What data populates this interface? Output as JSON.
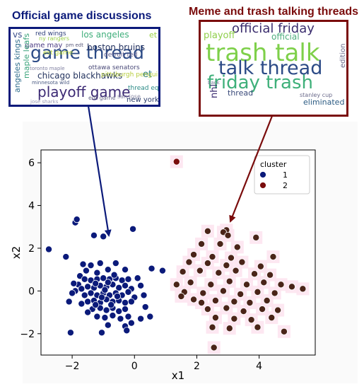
{
  "left_panel": {
    "title": "Official game discussions",
    "color": "#0b1a7a",
    "words": [
      {
        "t": "vs",
        "c": "#3b4f8c"
      },
      {
        "t": "red wings",
        "c": "#2d3f7a"
      },
      {
        "t": "los angeles",
        "c": "#3fae7a"
      },
      {
        "t": "et",
        "c": "#9cd24a"
      },
      {
        "t": "game thread",
        "c": "#2b4a86"
      },
      {
        "t": "game may",
        "c": "#4a3a82"
      },
      {
        "t": "boston bruins",
        "c": "#1f2d5c"
      },
      {
        "t": "est game",
        "c": "#b7d43a"
      },
      {
        "t": "detroit red",
        "c": "#5a5a8a"
      },
      {
        "t": "angeles kings",
        "c": "#2f6d8c"
      },
      {
        "t": "maple leafs",
        "c": "#3aa37a"
      },
      {
        "t": "et",
        "c": "#2f7f8c"
      },
      {
        "t": "chicago blackhawks",
        "c": "#23335e"
      },
      {
        "t": "toronto maple",
        "c": "#7f7fa0"
      },
      {
        "t": "ottawa senators",
        "c": "#4a4a78"
      },
      {
        "t": "minnesota wild",
        "c": "#4a5a82"
      },
      {
        "t": "pittsburgh penguins",
        "c": "#b5cc3a"
      },
      {
        "t": "playoff game",
        "c": "#3c2a74"
      },
      {
        "t": "thread eqt",
        "c": "#2a8a86"
      },
      {
        "t": "edt game",
        "c": "#6a6a8a"
      },
      {
        "t": "san jose",
        "c": "#8a8aa6"
      },
      {
        "t": "new york",
        "c": "#2a3a6a"
      },
      {
        "t": "jose sharks",
        "c": "#9a9ab4"
      },
      {
        "t": "pm edt",
        "c": "#5a5a7a"
      },
      {
        "t": "ny rangers",
        "c": "#9ad04a"
      }
    ]
  },
  "right_panel": {
    "title": "Meme and trash talking threads",
    "color": "#7a0c0c",
    "words": [
      {
        "t": "official friday",
        "c": "#3b2d6e"
      },
      {
        "t": "playoff",
        "c": "#8fcf4a"
      },
      {
        "t": "official",
        "c": "#4fae7e"
      },
      {
        "t": "trash talk",
        "c": "#7ed04a"
      },
      {
        "t": "talk thread",
        "c": "#2b4a86"
      },
      {
        "t": "friday trash",
        "c": "#3fb07a"
      },
      {
        "t": "nhl",
        "c": "#3a2a70"
      },
      {
        "t": "edition",
        "c": "#6a6a8a"
      },
      {
        "t": "thread",
        "c": "#3a4a7a"
      },
      {
        "t": "stanley cup",
        "c": "#6a6a8a"
      },
      {
        "t": "eliminated",
        "c": "#2a5a82"
      },
      {
        "t": "back",
        "c": "#7a7a9a"
      }
    ]
  },
  "chart_data": {
    "type": "scatter",
    "xlabel": "x1",
    "ylabel": "x2",
    "xlim": [
      -3.0,
      5.8
    ],
    "ylim": [
      -3.0,
      6.6
    ],
    "xticks": [
      -2,
      0,
      2,
      4
    ],
    "yticks": [
      -2,
      0,
      2,
      4,
      6
    ],
    "xtick_labels": [
      "−2",
      "0",
      "2",
      "4"
    ],
    "ytick_labels": [
      "−2",
      "0",
      "2",
      "4",
      "6"
    ],
    "grid": false,
    "legend": {
      "title": "cluster",
      "placement": "top-right"
    },
    "series": [
      {
        "name": "1",
        "color": "#0b1a7a",
        "points": [
          [
            -2.75,
            1.95
          ],
          [
            -2.2,
            1.6
          ],
          [
            -1.9,
            3.2
          ],
          [
            -1.85,
            3.35
          ],
          [
            -1.3,
            2.6
          ],
          [
            -1.0,
            2.55
          ],
          [
            -0.05,
            2.9
          ],
          [
            0.9,
            0.95
          ],
          [
            0.55,
            1.05
          ],
          [
            -1.65,
            1.25
          ],
          [
            -1.75,
            0.7
          ],
          [
            -1.8,
            0.3
          ],
          [
            -1.9,
            0.0
          ],
          [
            -1.55,
            0.95
          ],
          [
            -1.4,
            1.2
          ],
          [
            -1.1,
            1.3
          ],
          [
            -0.6,
            1.3
          ],
          [
            -0.3,
            1.0
          ],
          [
            -0.85,
            1.0
          ],
          [
            -1.2,
            0.85
          ],
          [
            -1.6,
            0.55
          ],
          [
            -1.4,
            0.5
          ],
          [
            -1.2,
            0.55
          ],
          [
            -1.0,
            0.6
          ],
          [
            -0.8,
            0.55
          ],
          [
            -0.6,
            0.6
          ],
          [
            -0.4,
            0.5
          ],
          [
            -0.2,
            0.55
          ],
          [
            -1.7,
            0.1
          ],
          [
            -1.5,
            0.2
          ],
          [
            -1.3,
            0.15
          ],
          [
            -1.1,
            0.25
          ],
          [
            -0.9,
            0.2
          ],
          [
            -0.7,
            0.3
          ],
          [
            -0.5,
            0.15
          ],
          [
            -0.3,
            0.25
          ],
          [
            -0.1,
            0.1
          ],
          [
            -1.6,
            -0.2
          ],
          [
            -1.4,
            -0.1
          ],
          [
            -1.2,
            -0.2
          ],
          [
            -1.0,
            -0.1
          ],
          [
            -0.8,
            -0.2
          ],
          [
            -0.6,
            -0.1
          ],
          [
            -0.4,
            -0.2
          ],
          [
            -0.2,
            -0.05
          ],
          [
            0.0,
            -0.3
          ],
          [
            -1.5,
            -0.5
          ],
          [
            -1.3,
            -0.45
          ],
          [
            -1.1,
            -0.55
          ],
          [
            -0.9,
            -0.4
          ],
          [
            -0.7,
            -0.5
          ],
          [
            -0.5,
            -0.45
          ],
          [
            -0.3,
            -0.55
          ],
          [
            -0.1,
            -0.5
          ],
          [
            -1.35,
            -0.85
          ],
          [
            -1.1,
            -0.8
          ],
          [
            -0.9,
            -0.9
          ],
          [
            -0.7,
            -0.8
          ],
          [
            -0.5,
            -0.95
          ],
          [
            -0.3,
            -0.85
          ],
          [
            -1.2,
            -1.2
          ],
          [
            -0.95,
            -1.25
          ],
          [
            -0.7,
            -1.15
          ],
          [
            -0.45,
            -1.3
          ],
          [
            -0.2,
            -1.2
          ],
          [
            -1.5,
            -1.0
          ],
          [
            -1.7,
            -0.6
          ],
          [
            -2.1,
            -0.5
          ],
          [
            -0.85,
            -1.6
          ],
          [
            -0.3,
            -1.65
          ],
          [
            -0.1,
            -1.5
          ],
          [
            -1.05,
            -1.95
          ],
          [
            -2.05,
            -1.95
          ],
          [
            -0.25,
            -1.85
          ],
          [
            0.2,
            -1.3
          ],
          [
            0.5,
            -1.2
          ],
          [
            0.35,
            -0.75
          ],
          [
            0.3,
            -0.2
          ],
          [
            0.2,
            0.25
          ],
          [
            0.1,
            0.6
          ],
          [
            -1.95,
            0.35
          ],
          [
            -2.0,
            -0.1
          ],
          [
            -1.25,
            0.35
          ],
          [
            -0.95,
            0.05
          ],
          [
            -0.75,
            -0.65
          ],
          [
            -0.55,
            -0.25
          ],
          [
            -1.05,
            -0.3
          ],
          [
            -1.25,
            -0.65
          ],
          [
            -0.85,
            0.4
          ],
          [
            -0.65,
            0.75
          ]
        ]
      },
      {
        "name": "2",
        "color": "#7a0c0c",
        "points": [
          [
            1.35,
            6.05
          ],
          [
            2.95,
            2.85
          ],
          [
            2.35,
            2.8
          ],
          [
            2.85,
            2.75
          ],
          [
            3.0,
            2.6
          ],
          [
            2.15,
            2.2
          ],
          [
            2.75,
            2.2
          ],
          [
            3.3,
            2.05
          ],
          [
            3.9,
            2.5
          ],
          [
            1.9,
            1.7
          ],
          [
            2.5,
            1.6
          ],
          [
            3.1,
            1.55
          ],
          [
            1.75,
            1.35
          ],
          [
            2.35,
            1.3
          ],
          [
            2.95,
            1.2
          ],
          [
            3.45,
            1.35
          ],
          [
            4.05,
            1.15
          ],
          [
            4.45,
            1.6
          ],
          [
            1.55,
            0.9
          ],
          [
            2.1,
            0.95
          ],
          [
            2.7,
            0.85
          ],
          [
            3.25,
            0.95
          ],
          [
            3.85,
            0.8
          ],
          [
            4.35,
            0.75
          ],
          [
            1.35,
            0.3
          ],
          [
            1.8,
            0.4
          ],
          [
            2.45,
            0.3
          ],
          [
            3.05,
            0.45
          ],
          [
            3.6,
            0.3
          ],
          [
            4.15,
            0.4
          ],
          [
            4.7,
            0.3
          ],
          [
            5.05,
            0.2
          ],
          [
            5.4,
            0.1
          ],
          [
            1.6,
            -0.05
          ],
          [
            2.2,
            -0.1
          ],
          [
            2.85,
            0.0
          ],
          [
            3.4,
            -0.15
          ],
          [
            3.95,
            -0.05
          ],
          [
            4.5,
            -0.1
          ],
          [
            1.9,
            -0.4
          ],
          [
            2.6,
            -0.45
          ],
          [
            3.2,
            -0.5
          ],
          [
            3.7,
            -0.55
          ],
          [
            4.25,
            -0.45
          ],
          [
            2.35,
            -0.85
          ],
          [
            2.95,
            -0.8
          ],
          [
            3.5,
            -0.95
          ],
          [
            4.1,
            -0.85
          ],
          [
            4.6,
            -0.9
          ],
          [
            2.6,
            -1.25
          ],
          [
            3.2,
            -1.3
          ],
          [
            3.75,
            -1.35
          ],
          [
            4.4,
            -1.25
          ],
          [
            2.5,
            -1.7
          ],
          [
            3.05,
            -1.75
          ],
          [
            3.95,
            -1.7
          ],
          [
            4.8,
            -1.9
          ],
          [
            2.55,
            -2.65
          ],
          [
            2.15,
            -0.55
          ],
          [
            1.5,
            -0.25
          ]
        ]
      }
    ]
  }
}
